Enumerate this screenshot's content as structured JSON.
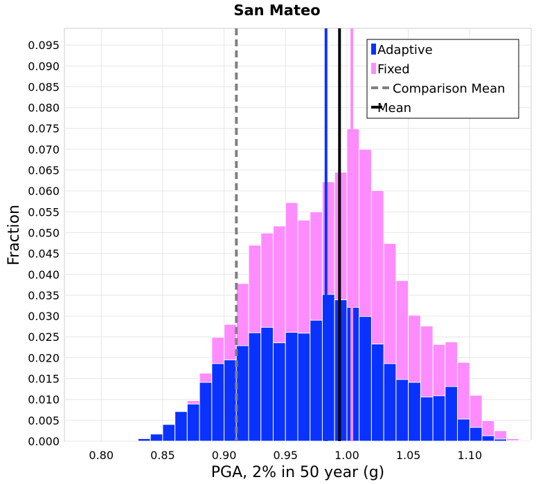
{
  "chart_data": {
    "type": "bar",
    "title": "San Mateo",
    "xlabel": "PGA, 2% in 50 year (g)",
    "ylabel": "Fraction",
    "xlim": [
      0.77,
      1.15
    ],
    "ylim": [
      0,
      0.099
    ],
    "xticks": [
      "0.80",
      "0.85",
      "0.90",
      "0.95",
      "1.00",
      "1.05",
      "1.10"
    ],
    "yticks": [
      "0.000",
      "0.005",
      "0.010",
      "0.015",
      "0.020",
      "0.025",
      "0.030",
      "0.035",
      "0.040",
      "0.045",
      "0.050",
      "0.055",
      "0.060",
      "0.065",
      "0.070",
      "0.075",
      "0.080",
      "0.085",
      "0.090",
      "0.095"
    ],
    "grid": true,
    "legend_position": "top-right",
    "bin_width": 0.01,
    "bin_centers": [
      0.835,
      0.845,
      0.855,
      0.865,
      0.875,
      0.885,
      0.895,
      0.905,
      0.915,
      0.925,
      0.935,
      0.945,
      0.955,
      0.965,
      0.975,
      0.985,
      0.995,
      1.005,
      1.015,
      1.025,
      1.035,
      1.045,
      1.055,
      1.065,
      1.075,
      1.085,
      1.095,
      1.105,
      1.115,
      1.125,
      1.135,
      1.145
    ],
    "series": [
      {
        "name": "Adaptive",
        "color": "#0a32ff",
        "values": [
          0.0006,
          0.0017,
          0.004,
          0.0071,
          0.0089,
          0.0141,
          0.0186,
          0.0195,
          0.0229,
          0.026,
          0.0273,
          0.0236,
          0.0261,
          0.0259,
          0.029,
          0.0352,
          0.0339,
          0.0321,
          0.0299,
          0.0233,
          0.0186,
          0.0148,
          0.0141,
          0.0106,
          0.0109,
          0.0131,
          0.0053,
          0.0033,
          0.0013,
          0.0005,
          0.0001,
          0.0
        ]
      },
      {
        "name": "Fixed",
        "color": "#ff8cff",
        "values": [
          0.0,
          0.0,
          0.0,
          0.0,
          0.0097,
          0.0163,
          0.0249,
          0.028,
          0.0378,
          0.047,
          0.0499,
          0.0516,
          0.0572,
          0.053,
          0.055,
          0.0622,
          0.0645,
          0.0749,
          0.07,
          0.0601,
          0.0474,
          0.0385,
          0.0302,
          0.0276,
          0.0232,
          0.0238,
          0.0189,
          0.011,
          0.0049,
          0.0025,
          0.0006,
          0.0002
        ]
      }
    ],
    "vlines": [
      {
        "name": "Comparison Mean",
        "x": 0.91,
        "color": "#808080",
        "style": "dashed"
      },
      {
        "name": "Mean",
        "x": 0.994,
        "color": "#000000",
        "style": "solid"
      },
      {
        "name": "Adaptive mean",
        "x": 0.983,
        "color": "#0a32ff",
        "style": "solid"
      },
      {
        "name": "Fixed mean",
        "x": 1.004,
        "color": "#ff8cff",
        "style": "solid"
      }
    ],
    "legend": [
      {
        "label": "Adaptive",
        "kind": "square",
        "color": "#0a32ff"
      },
      {
        "label": "Fixed",
        "kind": "square",
        "color": "#ff8cff"
      },
      {
        "label": "Comparison Mean",
        "kind": "dash",
        "color": "#808080"
      },
      {
        "label": "Mean",
        "kind": "line",
        "color": "#000000"
      }
    ]
  }
}
